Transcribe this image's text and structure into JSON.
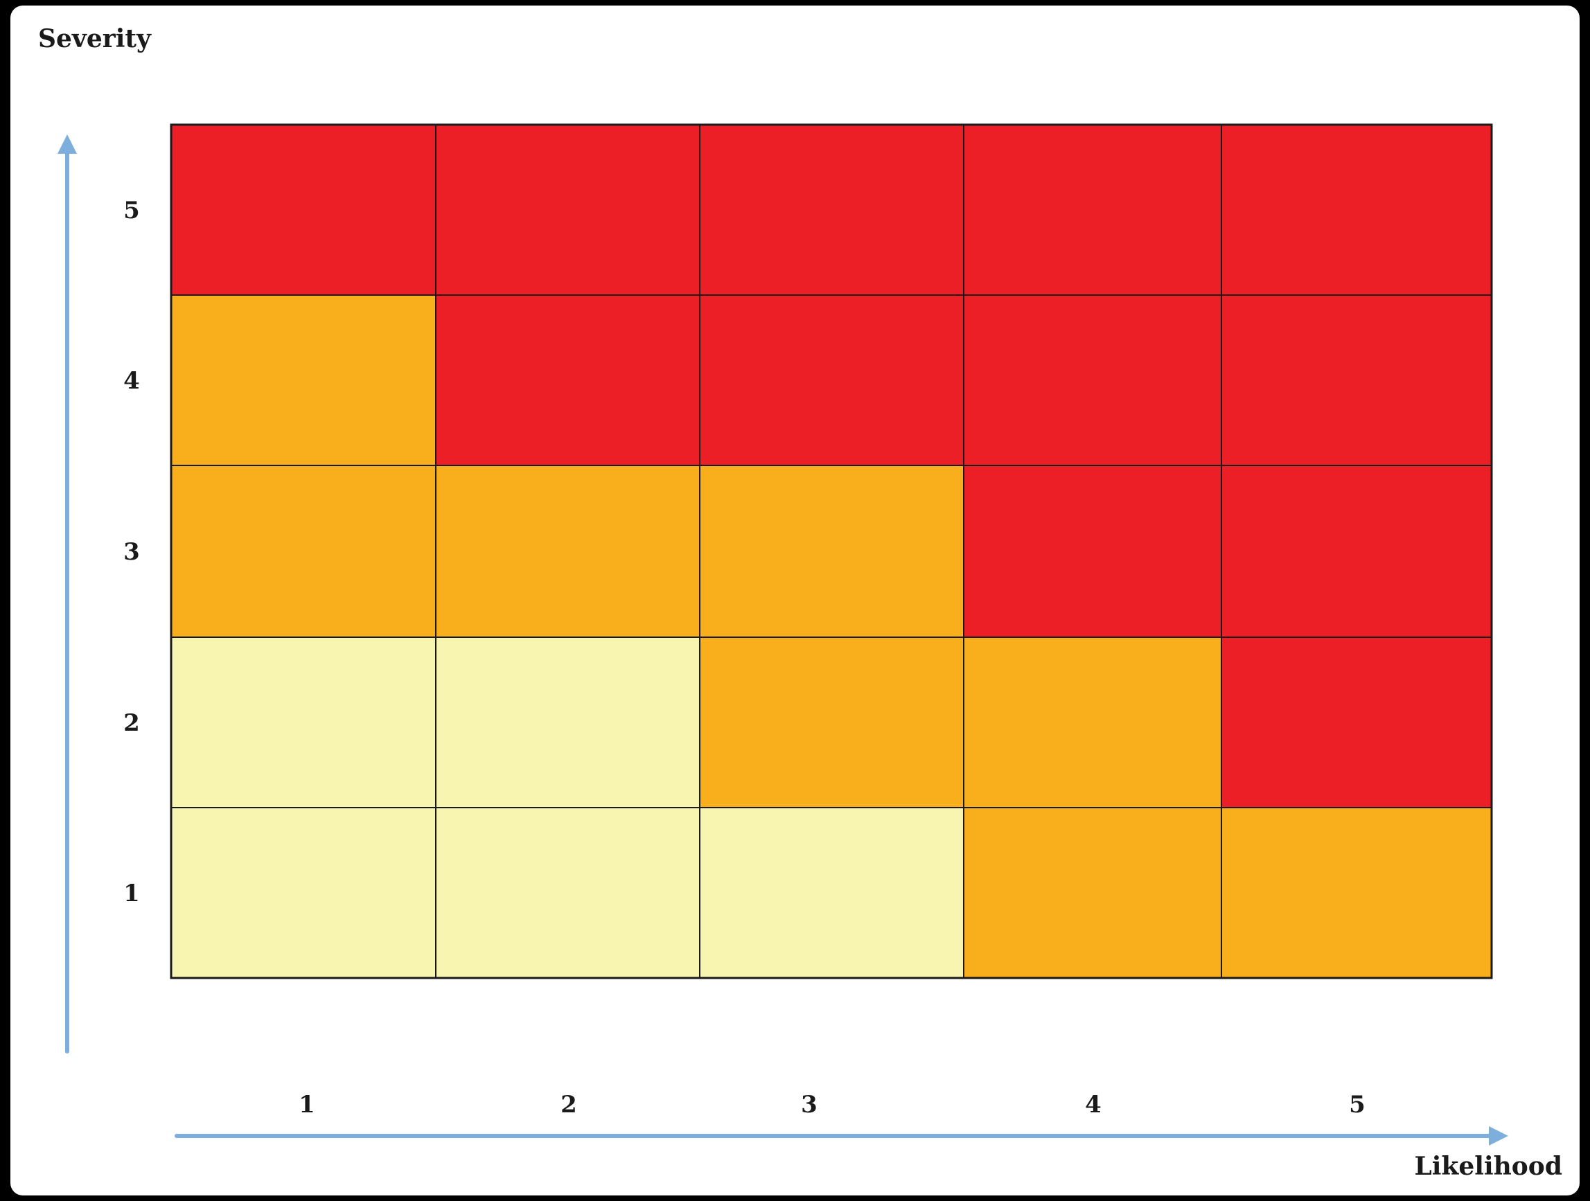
{
  "chart_data": {
    "type": "heatmap",
    "title": "",
    "xlabel": "Likelihood",
    "ylabel": "Severity",
    "x_categories": [
      "1",
      "2",
      "3",
      "4",
      "5"
    ],
    "y_categories": [
      "1",
      "2",
      "3",
      "4",
      "5"
    ],
    "legend": "none",
    "grid": true,
    "colors": {
      "low": "#F8F5B1",
      "medium": "#F9AE1B",
      "high": "#EC1F26",
      "axis_arrow": "#7EAEDB",
      "grid_line": "#1a1a1a"
    },
    "rows": [
      {
        "severity": "5",
        "levels": [
          "high",
          "high",
          "high",
          "high",
          "high"
        ]
      },
      {
        "severity": "4",
        "levels": [
          "medium",
          "high",
          "high",
          "high",
          "high"
        ]
      },
      {
        "severity": "3",
        "levels": [
          "medium",
          "medium",
          "medium",
          "high",
          "high"
        ]
      },
      {
        "severity": "2",
        "levels": [
          "low",
          "low",
          "medium",
          "medium",
          "high"
        ]
      },
      {
        "severity": "1",
        "levels": [
          "low",
          "low",
          "low",
          "medium",
          "medium"
        ]
      }
    ]
  }
}
